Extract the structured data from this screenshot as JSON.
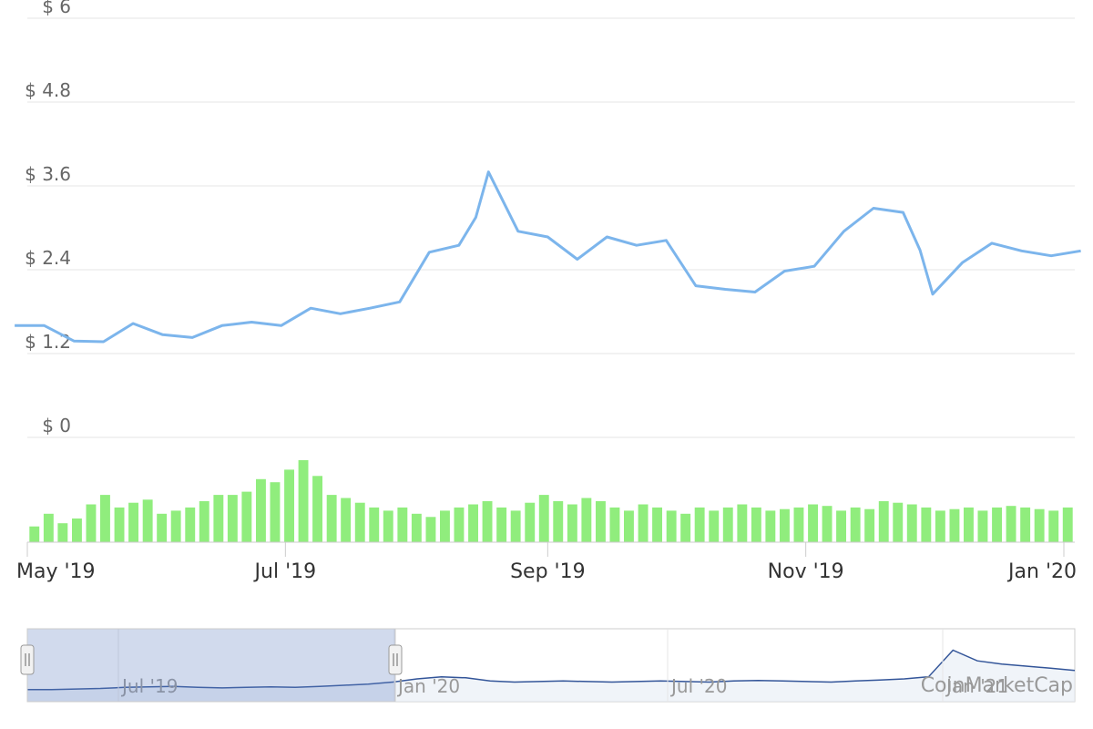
{
  "chart_data": {
    "type": "line",
    "title": "",
    "xlabel": "",
    "ylabel": "",
    "ylim": [
      0,
      6
    ],
    "y_ticks": [
      "$ 0",
      "$ 1.2",
      "$ 2.4",
      "$ 3.6",
      "$ 4.8",
      "$ 6"
    ],
    "x_ticks": [
      "May '19",
      "Jul '19",
      "Sep '19",
      "Nov '19",
      "Jan '20"
    ],
    "grid": true,
    "series": [
      {
        "color": "#7cb5ec",
        "x": [
          "2019-04-28",
          "2019-05-05",
          "2019-05-12",
          "2019-05-19",
          "2019-05-26",
          "2019-06-02",
          "2019-06-09",
          "2019-06-16",
          "2019-06-23",
          "2019-06-30",
          "2019-07-07",
          "2019-07-14",
          "2019-07-21",
          "2019-07-28",
          "2019-08-04",
          "2019-08-11",
          "2019-08-15",
          "2019-08-18",
          "2019-08-25",
          "2019-09-01",
          "2019-09-08",
          "2019-09-15",
          "2019-09-22",
          "2019-09-29",
          "2019-10-06",
          "2019-10-13",
          "2019-10-20",
          "2019-10-27",
          "2019-11-03",
          "2019-11-10",
          "2019-11-17",
          "2019-11-24",
          "2019-11-28",
          "2019-12-01",
          "2019-12-08",
          "2019-12-15",
          "2019-12-22",
          "2019-12-29",
          "2020-01-05"
        ],
        "values": [
          1.6,
          1.6,
          1.38,
          1.37,
          1.63,
          1.47,
          1.43,
          1.6,
          1.65,
          1.6,
          1.85,
          1.77,
          1.85,
          1.94,
          2.65,
          2.75,
          3.15,
          3.8,
          2.95,
          2.87,
          2.55,
          2.87,
          2.75,
          2.82,
          2.17,
          2.12,
          2.08,
          2.38,
          2.45,
          2.95,
          3.28,
          3.22,
          2.68,
          2.05,
          2.5,
          2.78,
          2.67,
          2.6,
          2.67
        ]
      }
    ],
    "volume_color": "#90ed7d",
    "volume": [
      10,
      18,
      12,
      15,
      24,
      30,
      22,
      25,
      27,
      18,
      20,
      22,
      26,
      30,
      30,
      32,
      40,
      38,
      46,
      52,
      42,
      30,
      28,
      25,
      22,
      20,
      22,
      18,
      16,
      20,
      22,
      24,
      26,
      22,
      20,
      25,
      30,
      26,
      24,
      28,
      26,
      22,
      20,
      24,
      22,
      20,
      18,
      22,
      20,
      22,
      24,
      22,
      20,
      21,
      22,
      24,
      23,
      20,
      22,
      21,
      26,
      25,
      24,
      22,
      20,
      21,
      22,
      20,
      22,
      23,
      22,
      21,
      20,
      22
    ],
    "navigator": {
      "x_ticks": [
        "Jul '19",
        "Jan '20",
        "Jul '20",
        "Jan '21"
      ],
      "values": [
        0.8,
        0.8,
        0.85,
        0.9,
        1.0,
        1.05,
        1.1,
        1.0,
        0.95,
        1.0,
        1.05,
        1.0,
        1.1,
        1.2,
        1.3,
        1.5,
        1.8,
        2.0,
        1.9,
        1.6,
        1.5,
        1.55,
        1.6,
        1.55,
        1.5,
        1.55,
        1.6,
        1.55,
        1.5,
        1.6,
        1.65,
        1.6,
        1.55,
        1.5,
        1.6,
        1.7,
        1.8,
        2.0,
        4.5,
        3.5,
        3.2,
        3.0,
        2.8,
        2.6
      ]
    }
  },
  "watermark": "CoinMarketCap"
}
